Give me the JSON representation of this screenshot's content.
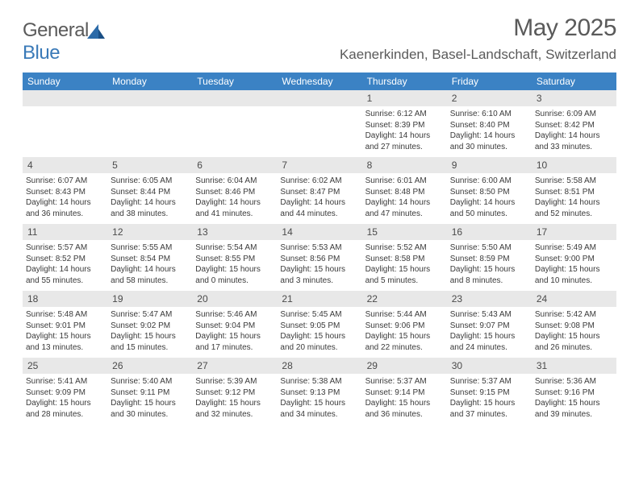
{
  "brand": {
    "part1": "General",
    "part2": "Blue"
  },
  "title": "May 2025",
  "location": "Kaenerkinden, Basel-Landschaft, Switzerland",
  "colors": {
    "header_bg": "#3b82c4",
    "header_text": "#ffffff",
    "daynum_bg": "#e8e8e8",
    "text": "#3a3a3a",
    "title_text": "#5a5a5a"
  },
  "weekdays": [
    "Sunday",
    "Monday",
    "Tuesday",
    "Wednesday",
    "Thursday",
    "Friday",
    "Saturday"
  ],
  "weeks": [
    [
      null,
      null,
      null,
      null,
      {
        "n": "1",
        "sunrise": "6:12 AM",
        "sunset": "8:39 PM",
        "d1": "Daylight: 14 hours",
        "d2": "and 27 minutes."
      },
      {
        "n": "2",
        "sunrise": "6:10 AM",
        "sunset": "8:40 PM",
        "d1": "Daylight: 14 hours",
        "d2": "and 30 minutes."
      },
      {
        "n": "3",
        "sunrise": "6:09 AM",
        "sunset": "8:42 PM",
        "d1": "Daylight: 14 hours",
        "d2": "and 33 minutes."
      }
    ],
    [
      {
        "n": "4",
        "sunrise": "6:07 AM",
        "sunset": "8:43 PM",
        "d1": "Daylight: 14 hours",
        "d2": "and 36 minutes."
      },
      {
        "n": "5",
        "sunrise": "6:05 AM",
        "sunset": "8:44 PM",
        "d1": "Daylight: 14 hours",
        "d2": "and 38 minutes."
      },
      {
        "n": "6",
        "sunrise": "6:04 AM",
        "sunset": "8:46 PM",
        "d1": "Daylight: 14 hours",
        "d2": "and 41 minutes."
      },
      {
        "n": "7",
        "sunrise": "6:02 AM",
        "sunset": "8:47 PM",
        "d1": "Daylight: 14 hours",
        "d2": "and 44 minutes."
      },
      {
        "n": "8",
        "sunrise": "6:01 AM",
        "sunset": "8:48 PM",
        "d1": "Daylight: 14 hours",
        "d2": "and 47 minutes."
      },
      {
        "n": "9",
        "sunrise": "6:00 AM",
        "sunset": "8:50 PM",
        "d1": "Daylight: 14 hours",
        "d2": "and 50 minutes."
      },
      {
        "n": "10",
        "sunrise": "5:58 AM",
        "sunset": "8:51 PM",
        "d1": "Daylight: 14 hours",
        "d2": "and 52 minutes."
      }
    ],
    [
      {
        "n": "11",
        "sunrise": "5:57 AM",
        "sunset": "8:52 PM",
        "d1": "Daylight: 14 hours",
        "d2": "and 55 minutes."
      },
      {
        "n": "12",
        "sunrise": "5:55 AM",
        "sunset": "8:54 PM",
        "d1": "Daylight: 14 hours",
        "d2": "and 58 minutes."
      },
      {
        "n": "13",
        "sunrise": "5:54 AM",
        "sunset": "8:55 PM",
        "d1": "Daylight: 15 hours",
        "d2": "and 0 minutes."
      },
      {
        "n": "14",
        "sunrise": "5:53 AM",
        "sunset": "8:56 PM",
        "d1": "Daylight: 15 hours",
        "d2": "and 3 minutes."
      },
      {
        "n": "15",
        "sunrise": "5:52 AM",
        "sunset": "8:58 PM",
        "d1": "Daylight: 15 hours",
        "d2": "and 5 minutes."
      },
      {
        "n": "16",
        "sunrise": "5:50 AM",
        "sunset": "8:59 PM",
        "d1": "Daylight: 15 hours",
        "d2": "and 8 minutes."
      },
      {
        "n": "17",
        "sunrise": "5:49 AM",
        "sunset": "9:00 PM",
        "d1": "Daylight: 15 hours",
        "d2": "and 10 minutes."
      }
    ],
    [
      {
        "n": "18",
        "sunrise": "5:48 AM",
        "sunset": "9:01 PM",
        "d1": "Daylight: 15 hours",
        "d2": "and 13 minutes."
      },
      {
        "n": "19",
        "sunrise": "5:47 AM",
        "sunset": "9:02 PM",
        "d1": "Daylight: 15 hours",
        "d2": "and 15 minutes."
      },
      {
        "n": "20",
        "sunrise": "5:46 AM",
        "sunset": "9:04 PM",
        "d1": "Daylight: 15 hours",
        "d2": "and 17 minutes."
      },
      {
        "n": "21",
        "sunrise": "5:45 AM",
        "sunset": "9:05 PM",
        "d1": "Daylight: 15 hours",
        "d2": "and 20 minutes."
      },
      {
        "n": "22",
        "sunrise": "5:44 AM",
        "sunset": "9:06 PM",
        "d1": "Daylight: 15 hours",
        "d2": "and 22 minutes."
      },
      {
        "n": "23",
        "sunrise": "5:43 AM",
        "sunset": "9:07 PM",
        "d1": "Daylight: 15 hours",
        "d2": "and 24 minutes."
      },
      {
        "n": "24",
        "sunrise": "5:42 AM",
        "sunset": "9:08 PM",
        "d1": "Daylight: 15 hours",
        "d2": "and 26 minutes."
      }
    ],
    [
      {
        "n": "25",
        "sunrise": "5:41 AM",
        "sunset": "9:09 PM",
        "d1": "Daylight: 15 hours",
        "d2": "and 28 minutes."
      },
      {
        "n": "26",
        "sunrise": "5:40 AM",
        "sunset": "9:11 PM",
        "d1": "Daylight: 15 hours",
        "d2": "and 30 minutes."
      },
      {
        "n": "27",
        "sunrise": "5:39 AM",
        "sunset": "9:12 PM",
        "d1": "Daylight: 15 hours",
        "d2": "and 32 minutes."
      },
      {
        "n": "28",
        "sunrise": "5:38 AM",
        "sunset": "9:13 PM",
        "d1": "Daylight: 15 hours",
        "d2": "and 34 minutes."
      },
      {
        "n": "29",
        "sunrise": "5:37 AM",
        "sunset": "9:14 PM",
        "d1": "Daylight: 15 hours",
        "d2": "and 36 minutes."
      },
      {
        "n": "30",
        "sunrise": "5:37 AM",
        "sunset": "9:15 PM",
        "d1": "Daylight: 15 hours",
        "d2": "and 37 minutes."
      },
      {
        "n": "31",
        "sunrise": "5:36 AM",
        "sunset": "9:16 PM",
        "d1": "Daylight: 15 hours",
        "d2": "and 39 minutes."
      }
    ]
  ],
  "labels": {
    "sunrise": "Sunrise: ",
    "sunset": "Sunset: "
  }
}
